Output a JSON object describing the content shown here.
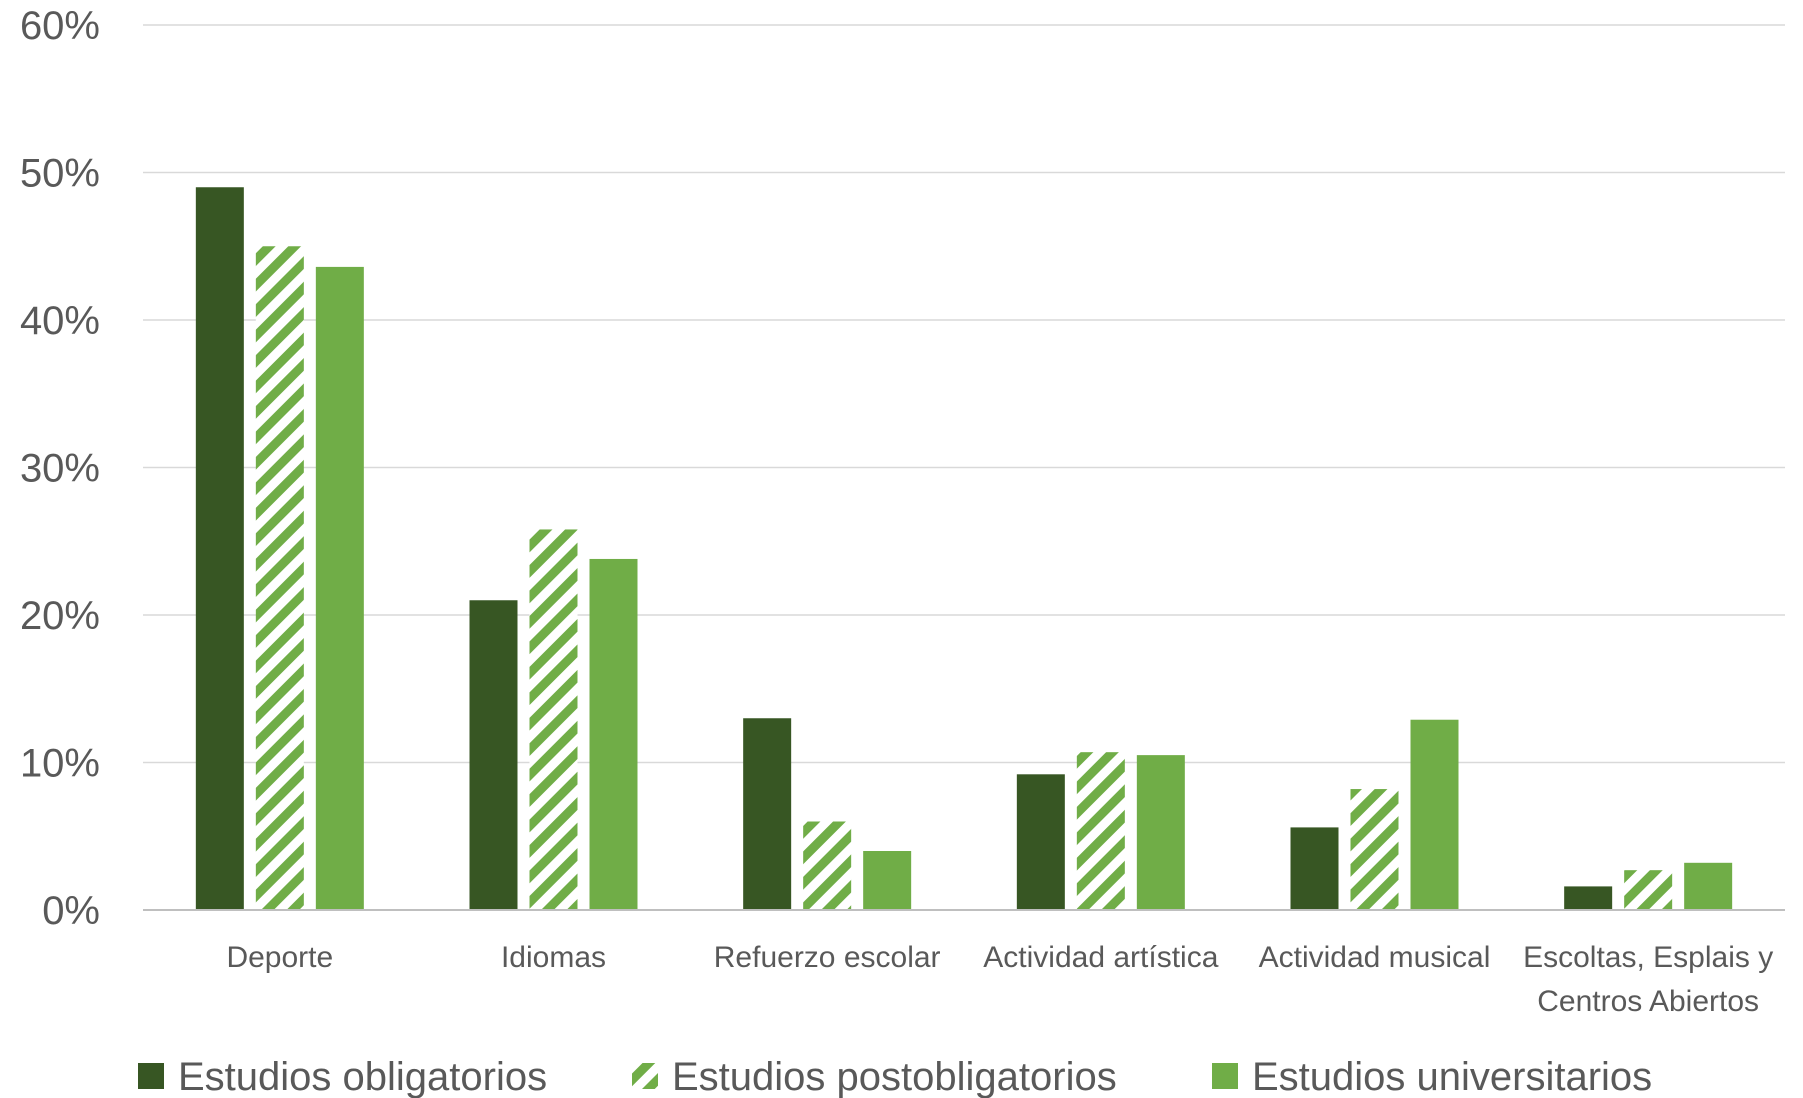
{
  "chart_data": {
    "type": "bar",
    "title": "",
    "xlabel": "",
    "ylabel": "",
    "ylim": [
      0,
      60
    ],
    "yticks": [
      0,
      10,
      20,
      30,
      40,
      50,
      60
    ],
    "ytick_suffix": "%",
    "grid": true,
    "legend_position": "bottom",
    "categories": [
      [
        "Deporte"
      ],
      [
        "Idiomas"
      ],
      [
        "Refuerzo escolar"
      ],
      [
        "Actividad artística"
      ],
      [
        "Actividad musical"
      ],
      [
        "Escoltas, Esplais y",
        "Centros Abiertos"
      ]
    ],
    "series": [
      {
        "name": "Estudios obligatorios",
        "color": "#375623",
        "pattern": "solid",
        "values": [
          49,
          21,
          13,
          9.2,
          5.6,
          1.6
        ]
      },
      {
        "name": "Estudios postobligatorios",
        "color": "#70ad47",
        "pattern": "hatched",
        "values": [
          45,
          25.8,
          6,
          10.7,
          8.2,
          2.7
        ]
      },
      {
        "name": "Estudios universitarios",
        "color": "#70ad47",
        "pattern": "solid",
        "values": [
          43.6,
          23.8,
          4,
          10.5,
          12.9,
          3.2
        ]
      }
    ]
  }
}
